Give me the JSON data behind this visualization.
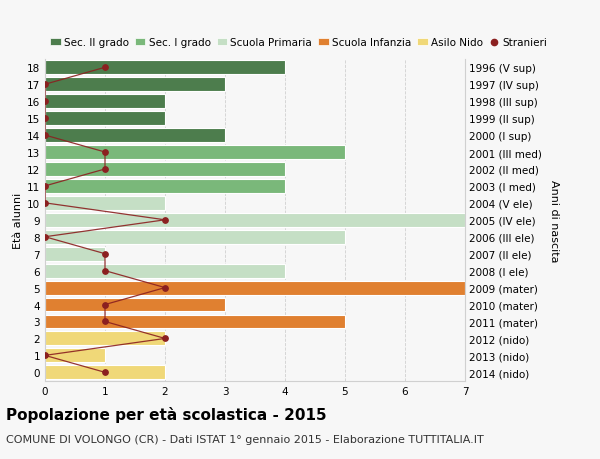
{
  "ages": [
    18,
    17,
    16,
    15,
    14,
    13,
    12,
    11,
    10,
    9,
    8,
    7,
    6,
    5,
    4,
    3,
    2,
    1,
    0
  ],
  "years": [
    "1996 (V sup)",
    "1997 (IV sup)",
    "1998 (III sup)",
    "1999 (II sup)",
    "2000 (I sup)",
    "2001 (III med)",
    "2002 (II med)",
    "2003 (I med)",
    "2004 (V ele)",
    "2005 (IV ele)",
    "2006 (III ele)",
    "2007 (II ele)",
    "2008 (I ele)",
    "2009 (mater)",
    "2010 (mater)",
    "2011 (mater)",
    "2012 (nido)",
    "2013 (nido)",
    "2014 (nido)"
  ],
  "bar_values": [
    4,
    3,
    2,
    2,
    3,
    5,
    4,
    4,
    2,
    7,
    5,
    1,
    4,
    7,
    3,
    5,
    2,
    1,
    2
  ],
  "bar_colors": [
    "#4d7d4d",
    "#4d7d4d",
    "#4d7d4d",
    "#4d7d4d",
    "#4d7d4d",
    "#7ab87a",
    "#7ab87a",
    "#7ab87a",
    "#c5dfc5",
    "#c5dfc5",
    "#c5dfc5",
    "#c5dfc5",
    "#c5dfc5",
    "#e08030",
    "#e08030",
    "#e08030",
    "#f0d878",
    "#f0d878",
    "#f0d878"
  ],
  "stranieri_values": [
    1,
    0,
    0,
    0,
    0,
    1,
    1,
    0,
    0,
    2,
    0,
    1,
    1,
    2,
    1,
    1,
    2,
    0,
    1
  ],
  "stranieri_color": "#8b2020",
  "xlim": [
    0,
    7
  ],
  "ylim": [
    -0.5,
    18.5
  ],
  "ylabel_left": "Età alunni",
  "ylabel_right": "Anni di nascita",
  "title": "Popolazione per età scolastica - 2015",
  "subtitle": "COMUNE DI VOLONGO (CR) - Dati ISTAT 1° gennaio 2015 - Elaborazione TUTTITALIA.IT",
  "legend_labels": [
    "Sec. II grado",
    "Sec. I grado",
    "Scuola Primaria",
    "Scuola Infanzia",
    "Asilo Nido",
    "Stranieri"
  ],
  "legend_colors": [
    "#4d7d4d",
    "#7ab87a",
    "#c5dfc5",
    "#e08030",
    "#f0d878",
    "#8b2020"
  ],
  "bar_height": 0.82,
  "bg_color": "#f7f7f7",
  "grid_color": "#d0d0d0",
  "title_fontsize": 11,
  "subtitle_fontsize": 8,
  "tick_fontsize": 7.5,
  "label_fontsize": 8,
  "legend_fontsize": 7.5
}
